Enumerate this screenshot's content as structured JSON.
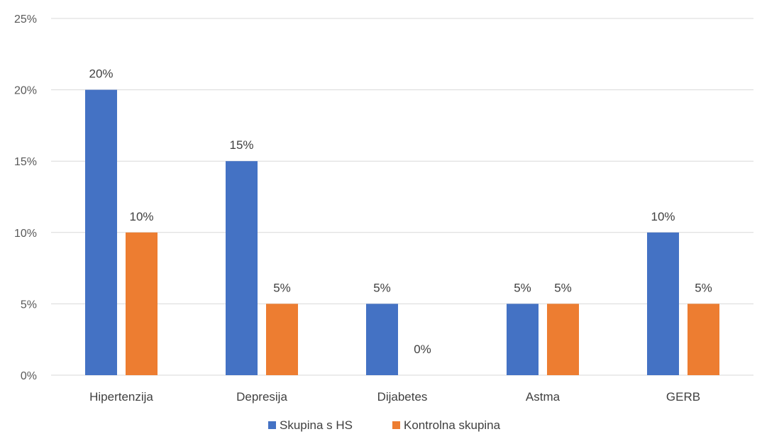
{
  "chart_data": {
    "type": "bar",
    "categories": [
      "Hipertenzija",
      "Depresija",
      "Dijabetes",
      "Astma",
      "GERB"
    ],
    "series": [
      {
        "name": "Skupina s HS",
        "color": "#4472C4",
        "values": [
          20,
          15,
          5,
          5,
          10
        ],
        "labels": [
          "20%",
          "15%",
          "5%",
          "5%",
          "10%"
        ]
      },
      {
        "name": "Kontrolna skupina",
        "color": "#ED7D31",
        "values": [
          10,
          5,
          0,
          5,
          5
        ],
        "labels": [
          "10%",
          "5%",
          "0%",
          "5%",
          "5%"
        ]
      }
    ],
    "yticks": [
      "0%",
      "5%",
      "10%",
      "15%",
      "20%",
      "25%"
    ],
    "ylim": [
      0,
      25
    ],
    "grid": true,
    "legend": "bottom"
  }
}
